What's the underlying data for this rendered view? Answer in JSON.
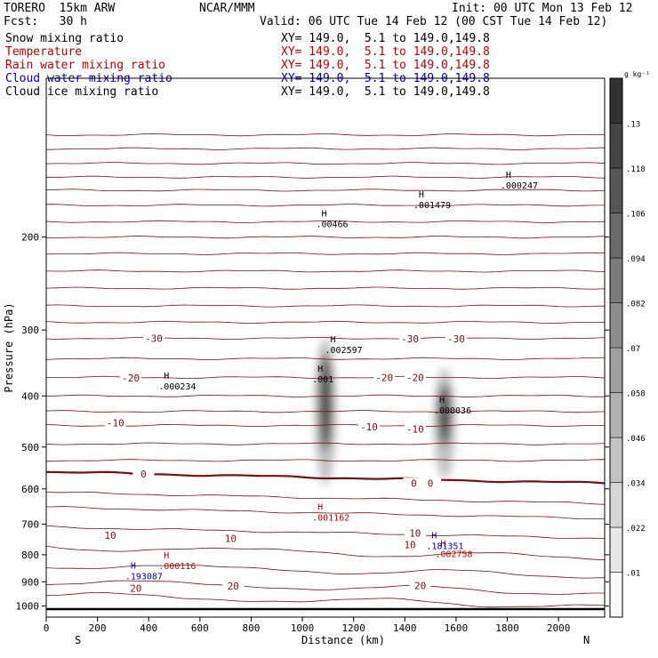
{
  "header": {
    "model": "TORERO  15km ARW",
    "center": "NCAR/MMM",
    "init": "Init: 00 UTC Mon 13 Feb 12",
    "fcst": "Fcst:   30 h",
    "valid": "Valid: 06 UTC Tue 14 Feb 12 (00 CST Tue 14 Feb 12)"
  },
  "fields": [
    {
      "name": "Snow mixing ratio",
      "xy": "",
      "color": "#000000"
    },
    {
      "name": "Temperature",
      "xy": "XY= 149.0,  5.1 to 149.0,149.8",
      "color": "#c00000"
    },
    {
      "name": "Rain water mixing ratio",
      "xy": "XY= 149.0,  5.1 to 149.0,149.8",
      "color": "#c00000"
    },
    {
      "name": "Cloud water mixing ratio",
      "xy": "XY= 149.0,  5.1 to 149.0,149.8",
      "color": "#0000b0"
    },
    {
      "name": "Cloud ice mixing ratio",
      "xy": "XY= 149.0,  5.1 to 149.0,149.8",
      "color": "#000000"
    }
  ],
  "first_xy": "XY= 149.0,  5.1 to 149.0,149.8",
  "chart_data": {
    "type": "contour-cross-section",
    "xlabel": "Distance (km)",
    "ylabel": "Pressure (hPa)",
    "xlim": [
      0,
      2180
    ],
    "ylim": [
      1050,
      100
    ],
    "y_scale": "log",
    "x_ticks": [
      0,
      200,
      400,
      600,
      800,
      1000,
      1200,
      1400,
      1600,
      1800,
      2000
    ],
    "y_ticks": [
      200,
      300,
      400,
      500,
      600,
      700,
      800,
      900,
      1000
    ],
    "x_end_labels": {
      "left": "S",
      "right": "N"
    },
    "colorbar": {
      "unit": "g kg⁻¹",
      "ticks": [
        ".01",
        ".022",
        ".034",
        ".046",
        ".058",
        ".07",
        ".082",
        ".094",
        ".106",
        ".118",
        ".13"
      ]
    },
    "surface_pressure": 1014,
    "temperature_contour_labels": [
      {
        "text": "-30",
        "x": 420,
        "p": 311
      },
      {
        "text": "-30",
        "x": 1420,
        "p": 312
      },
      {
        "text": "-30",
        "x": 1600,
        "p": 312
      },
      {
        "text": "-20",
        "x": 330,
        "p": 370
      },
      {
        "text": "-20",
        "x": 1320,
        "p": 369
      },
      {
        "text": "-20",
        "x": 1440,
        "p": 369
      },
      {
        "text": "-10",
        "x": 270,
        "p": 450
      },
      {
        "text": "-10",
        "x": 1260,
        "p": 458
      },
      {
        "text": "-10",
        "x": 1440,
        "p": 462
      },
      {
        "text": "0",
        "x": 380,
        "p": 562
      },
      {
        "text": "0",
        "x": 1435,
        "p": 585
      },
      {
        "text": "0",
        "x": 1500,
        "p": 585
      },
      {
        "text": "10",
        "x": 250,
        "p": 735
      },
      {
        "text": "10",
        "x": 720,
        "p": 745
      },
      {
        "text": "10",
        "x": 1440,
        "p": 728
      },
      {
        "text": "10",
        "x": 1420,
        "p": 765
      },
      {
        "text": "20",
        "x": 350,
        "p": 926
      },
      {
        "text": "20",
        "x": 730,
        "p": 917
      },
      {
        "text": "20",
        "x": 1460,
        "p": 914
      }
    ],
    "maxima": [
      {
        "label": ".00466",
        "x": 1095,
        "p": 187,
        "color": "#000000"
      },
      {
        "label": ".001479",
        "x": 1475,
        "p": 172,
        "color": "#000000"
      },
      {
        "label": ".000247",
        "x": 1815,
        "p": 158,
        "color": "#000000"
      },
      {
        "label": ".002597",
        "x": 1130,
        "p": 324,
        "color": "#000000"
      },
      {
        "label": ".001",
        "x": 1080,
        "p": 368,
        "color": "#000000"
      },
      {
        "label": ".000234",
        "x": 480,
        "p": 380,
        "color": "#000000"
      },
      {
        "label": ".000036",
        "x": 1555,
        "p": 422,
        "color": "#000000"
      },
      {
        "label": ".001162",
        "x": 1080,
        "p": 673,
        "color": "#c00000"
      },
      {
        "label": ".000116",
        "x": 480,
        "p": 832,
        "color": "#c00000"
      },
      {
        "label": ".002758",
        "x": 1560,
        "p": 790,
        "color": "#c00000"
      },
      {
        "label": ".193087",
        "x": 350,
        "p": 870,
        "color": "#0000b0"
      },
      {
        "label": ".181351",
        "x": 1525,
        "p": 762,
        "color": "#0000b0"
      }
    ],
    "snow_shading": [
      {
        "x": 1090,
        "p_top": 310,
        "p_bottom": 590,
        "peak": 0.13
      },
      {
        "x": 1555,
        "p_top": 355,
        "p_bottom": 575,
        "peak": 0.12
      }
    ]
  }
}
